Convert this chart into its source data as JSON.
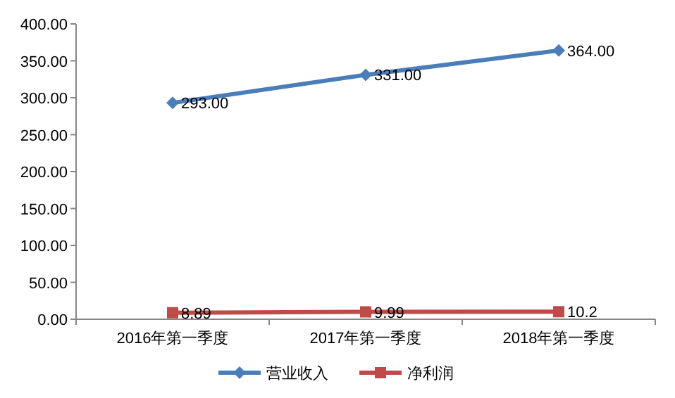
{
  "chart_data": {
    "type": "line",
    "categories": [
      "2016年第一季度",
      "2017年第一季度",
      "2018年第一季度"
    ],
    "series": [
      {
        "name": "营业收入",
        "color": "#4a7ebb",
        "marker": "diamond",
        "values": [
          293,
          331,
          364
        ],
        "value_labels": [
          "293.00",
          "331.00",
          "364.00"
        ]
      },
      {
        "name": "净利润",
        "color": "#be4b48",
        "marker": "square",
        "values": [
          8.89,
          9.99,
          10.2
        ],
        "value_labels": [
          "8.89",
          "9.99",
          "10.2"
        ]
      }
    ],
    "ylim": [
      0,
      400
    ],
    "yticks": [
      {
        "value": 0,
        "label": "0.00"
      },
      {
        "value": 50,
        "label": "50.00"
      },
      {
        "value": 100,
        "label": "100.00"
      },
      {
        "value": 150,
        "label": "150.00"
      },
      {
        "value": 200,
        "label": "200.00"
      },
      {
        "value": 250,
        "label": "250.00"
      },
      {
        "value": 300,
        "label": "300.00"
      },
      {
        "value": 350,
        "label": "350.00"
      },
      {
        "value": 400,
        "label": "400.00"
      }
    ],
    "grid": false,
    "legend": "bottom",
    "line_style": "solid"
  }
}
